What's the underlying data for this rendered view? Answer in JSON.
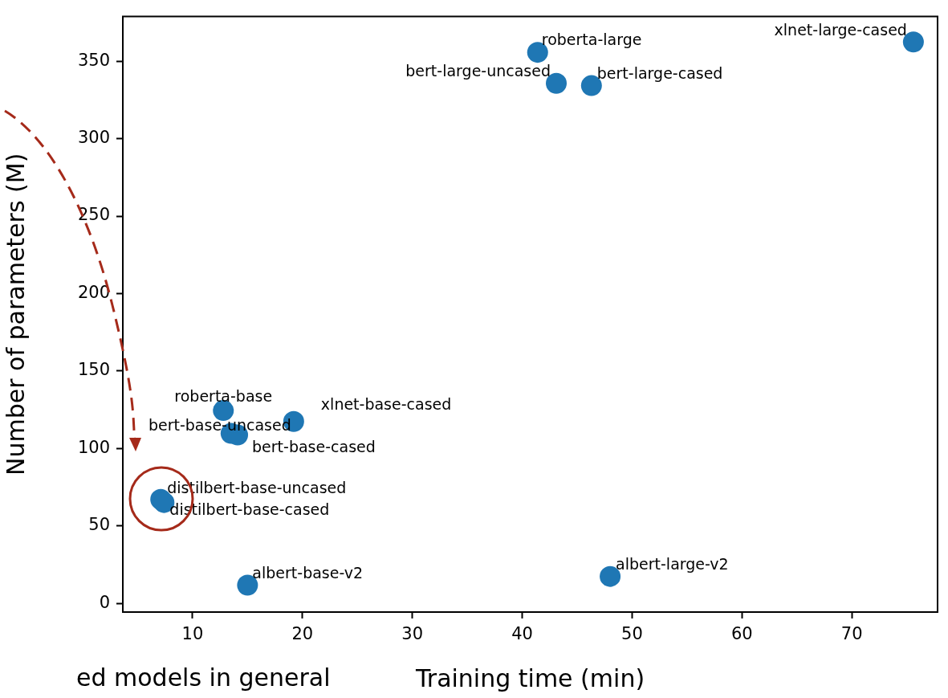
{
  "chart_data": {
    "type": "scatter",
    "xlabel": "Training time (min)",
    "ylabel": "Number of parameters (M)",
    "x": [
      41.4,
      43.1,
      46.3,
      75.6,
      12.8,
      13.5,
      14.1,
      19.2,
      7.1,
      7.4,
      15.0,
      48.0
    ],
    "series": [
      {
        "color": "#1f77b4",
        "values": [
          355.7,
          335.7,
          334.2,
          362.4,
          124.5,
          109.7,
          108.7,
          117.4,
          67.1,
          65.1,
          11.8,
          17.4
        ],
        "value_labels": [
          "roberta-large",
          "bert-large-uncased",
          "bert-large-cased",
          "xlnet-large-cased",
          "roberta-base",
          "bert-base-uncased",
          "bert-base-cased",
          "xlnet-base-cased",
          "distilbert-base-uncased",
          "distilbert-base-cased",
          "albert-base-v2",
          "albert-large-v2"
        ]
      }
    ],
    "xlim": [
      3.65,
      77.8
    ],
    "xticks": [
      10,
      20,
      30,
      40,
      50,
      60,
      70
    ],
    "ylim": [
      -5.6,
      378.8
    ],
    "yticks": [
      0,
      50,
      100,
      150,
      200,
      250,
      300,
      350
    ],
    "grid": false,
    "legend": false,
    "marker": "circle",
    "annotations": [
      "ed models in general"
    ]
  }
}
